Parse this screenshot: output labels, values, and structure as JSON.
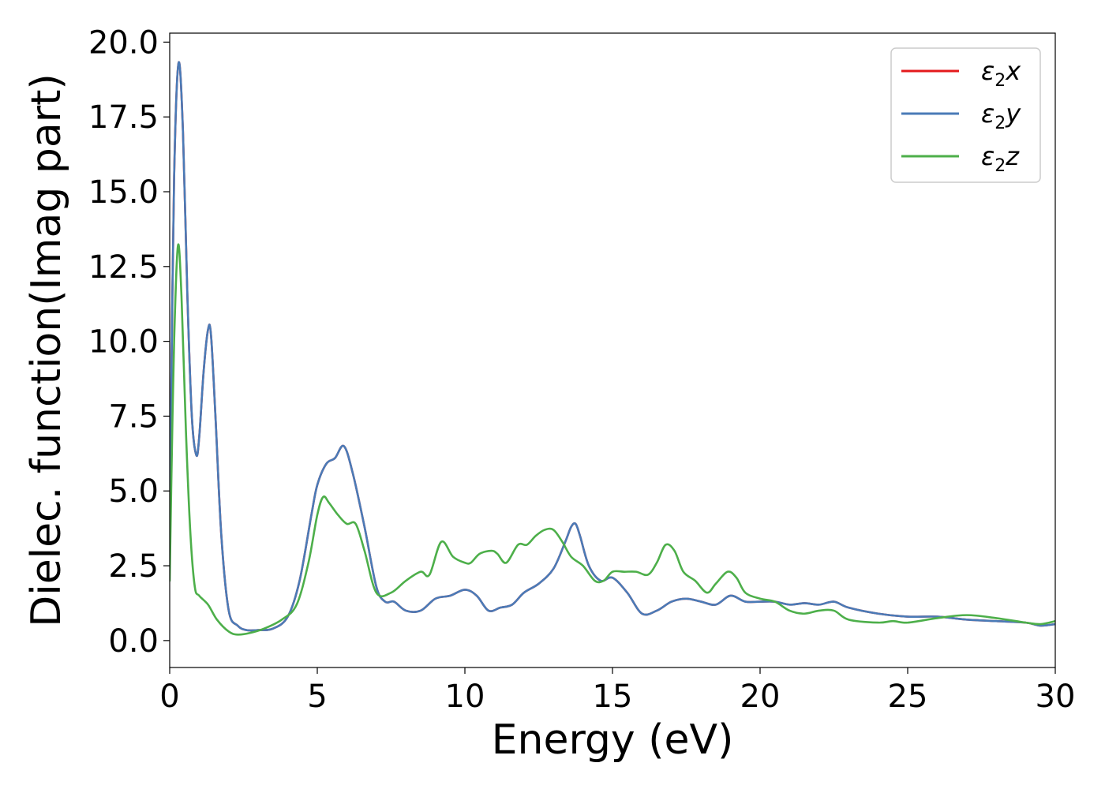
{
  "chart_data": {
    "type": "line",
    "title": "",
    "xlabel": "Energy (eV)",
    "ylabel": "Dielec. function(Imag part)",
    "xlim": [
      0,
      30
    ],
    "ylim": [
      -0.9,
      20.3
    ],
    "xticks": [
      "0",
      "5",
      "10",
      "15",
      "20",
      "25",
      "30"
    ],
    "yticks": [
      "0.0",
      "2.5",
      "5.0",
      "7.5",
      "10.0",
      "12.5",
      "15.0",
      "17.5",
      "20.0"
    ],
    "grid": false,
    "legend_position": "top-right",
    "series": [
      {
        "name": "ε2x",
        "legend_base": "ε",
        "legend_sub": "2",
        "legend_tail": "x",
        "color": "#e41a1c",
        "x": [
          0,
          0.05,
          0.15,
          0.3,
          0.45,
          0.6,
          0.75,
          0.9,
          1.0,
          1.15,
          1.3,
          1.4,
          1.55,
          1.75,
          2.0,
          2.3,
          2.6,
          3.0,
          3.5,
          4.0,
          4.4,
          4.8,
          5.0,
          5.3,
          5.6,
          5.9,
          6.2,
          6.6,
          7.0,
          7.3,
          7.6,
          8.0,
          8.5,
          9.0,
          9.5,
          10.0,
          10.4,
          10.8,
          11.2,
          11.6,
          12.0,
          12.5,
          13.0,
          13.4,
          13.6,
          13.75,
          13.9,
          14.2,
          14.6,
          15.0,
          15.5,
          16.0,
          16.5,
          17.0,
          17.5,
          18.0,
          18.5,
          19.0,
          19.5,
          20.0,
          20.5,
          21.0,
          21.5,
          22.0,
          22.5,
          23.0,
          24.0,
          25.0,
          26.0,
          27.0,
          28.0,
          29.0,
          29.5,
          30.0
        ],
        "y": [
          3.0,
          8.0,
          15.5,
          19.3,
          17.0,
          11.5,
          7.5,
          6.2,
          6.8,
          9.0,
          10.4,
          10.2,
          7.5,
          3.5,
          1.0,
          0.5,
          0.35,
          0.35,
          0.4,
          0.8,
          2.0,
          4.2,
          5.2,
          5.9,
          6.1,
          6.5,
          5.6,
          3.8,
          1.8,
          1.3,
          1.3,
          1.0,
          1.0,
          1.4,
          1.5,
          1.7,
          1.5,
          1.0,
          1.1,
          1.2,
          1.6,
          1.9,
          2.4,
          3.3,
          3.8,
          3.9,
          3.5,
          2.5,
          2.0,
          2.1,
          1.6,
          0.9,
          1.0,
          1.3,
          1.4,
          1.3,
          1.2,
          1.5,
          1.3,
          1.3,
          1.3,
          1.2,
          1.25,
          1.2,
          1.3,
          1.1,
          0.9,
          0.8,
          0.8,
          0.7,
          0.65,
          0.6,
          0.5,
          0.55
        ]
      },
      {
        "name": "ε2y",
        "legend_base": "ε",
        "legend_sub": "2",
        "legend_tail": "y",
        "color": "#4a7bb7",
        "x": [
          0,
          0.05,
          0.15,
          0.3,
          0.45,
          0.6,
          0.75,
          0.9,
          1.0,
          1.15,
          1.3,
          1.4,
          1.55,
          1.75,
          2.0,
          2.3,
          2.6,
          3.0,
          3.5,
          4.0,
          4.4,
          4.8,
          5.0,
          5.3,
          5.6,
          5.9,
          6.2,
          6.6,
          7.0,
          7.3,
          7.6,
          8.0,
          8.5,
          9.0,
          9.5,
          10.0,
          10.4,
          10.8,
          11.2,
          11.6,
          12.0,
          12.5,
          13.0,
          13.4,
          13.6,
          13.75,
          13.9,
          14.2,
          14.6,
          15.0,
          15.5,
          16.0,
          16.5,
          17.0,
          17.5,
          18.0,
          18.5,
          19.0,
          19.5,
          20.0,
          20.5,
          21.0,
          21.5,
          22.0,
          22.5,
          23.0,
          24.0,
          25.0,
          26.0,
          27.0,
          28.0,
          29.0,
          29.5,
          30.0
        ],
        "y": [
          3.0,
          8.0,
          15.5,
          19.3,
          17.0,
          11.5,
          7.5,
          6.2,
          6.8,
          9.0,
          10.4,
          10.2,
          7.5,
          3.5,
          1.0,
          0.5,
          0.35,
          0.35,
          0.4,
          0.8,
          2.0,
          4.2,
          5.2,
          5.9,
          6.1,
          6.5,
          5.6,
          3.8,
          1.8,
          1.3,
          1.3,
          1.0,
          1.0,
          1.4,
          1.5,
          1.7,
          1.5,
          1.0,
          1.1,
          1.2,
          1.6,
          1.9,
          2.4,
          3.3,
          3.8,
          3.9,
          3.5,
          2.5,
          2.0,
          2.1,
          1.6,
          0.9,
          1.0,
          1.3,
          1.4,
          1.3,
          1.2,
          1.5,
          1.3,
          1.3,
          1.3,
          1.2,
          1.25,
          1.2,
          1.3,
          1.1,
          0.9,
          0.8,
          0.8,
          0.7,
          0.65,
          0.6,
          0.5,
          0.55
        ]
      },
      {
        "name": "ε2z",
        "legend_base": "ε",
        "legend_sub": "2",
        "legend_tail": "z",
        "color": "#4daf4a",
        "x": [
          0,
          0.05,
          0.15,
          0.28,
          0.4,
          0.55,
          0.7,
          0.85,
          1.0,
          1.3,
          1.6,
          2.0,
          2.3,
          2.7,
          3.2,
          3.8,
          4.3,
          4.7,
          5.0,
          5.2,
          5.4,
          5.7,
          6.0,
          6.3,
          6.6,
          7.0,
          7.5,
          8.0,
          8.5,
          8.8,
          9.2,
          9.6,
          10.0,
          10.2,
          10.5,
          10.9,
          11.1,
          11.4,
          11.8,
          12.1,
          12.4,
          12.7,
          13.0,
          13.3,
          13.6,
          14.0,
          14.4,
          14.7,
          15.0,
          15.4,
          15.8,
          16.2,
          16.5,
          16.8,
          17.1,
          17.4,
          17.8,
          18.2,
          18.5,
          18.9,
          19.2,
          19.5,
          20.0,
          20.5,
          21.0,
          21.5,
          22.0,
          22.5,
          23.0,
          24.0,
          24.5,
          25.0,
          26.0,
          27.0,
          28.0,
          29.0,
          29.5,
          30.0
        ],
        "y": [
          2.0,
          5.0,
          10.0,
          13.2,
          11.5,
          7.0,
          3.6,
          1.8,
          1.5,
          1.2,
          0.7,
          0.3,
          0.2,
          0.25,
          0.4,
          0.7,
          1.2,
          2.6,
          4.2,
          4.8,
          4.6,
          4.2,
          3.9,
          3.9,
          3.0,
          1.6,
          1.6,
          2.0,
          2.3,
          2.2,
          3.3,
          2.8,
          2.6,
          2.6,
          2.9,
          3.0,
          2.9,
          2.6,
          3.2,
          3.2,
          3.5,
          3.7,
          3.7,
          3.3,
          2.8,
          2.5,
          2.0,
          2.0,
          2.3,
          2.3,
          2.3,
          2.2,
          2.6,
          3.2,
          3.0,
          2.3,
          2.0,
          1.6,
          1.9,
          2.3,
          2.1,
          1.6,
          1.4,
          1.3,
          1.0,
          0.9,
          1.0,
          1.0,
          0.7,
          0.6,
          0.65,
          0.6,
          0.75,
          0.85,
          0.75,
          0.6,
          0.55,
          0.65
        ]
      }
    ]
  }
}
